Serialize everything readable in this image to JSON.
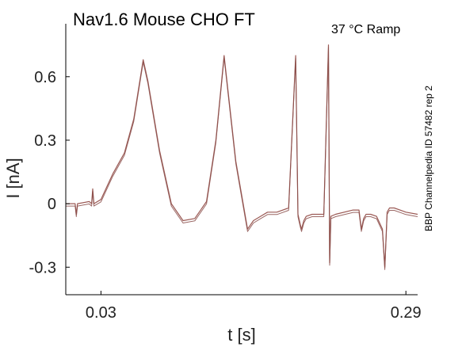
{
  "chart_data": {
    "type": "line",
    "title": "Nav1.6  Mouse  CHO FT",
    "condition": "37 °C  Ramp",
    "xlabel": "t [s]",
    "ylabel": "I [nA]",
    "side_note": "BBP Channelpedia ID 57482 rep 2",
    "xlim": [
      0.0,
      0.3
    ],
    "ylim": [
      -0.43,
      0.85
    ],
    "x_ticks": [
      0.03,
      0.29
    ],
    "x_tick_labels": [
      "0.03",
      "0.29"
    ],
    "y_ticks": [
      0.6,
      0.3,
      0,
      -0.3
    ],
    "y_tick_labels": [
      "0.6",
      "0.3",
      "0",
      "-0.3"
    ],
    "color": "#9b5a55",
    "series": [
      {
        "x": [
          0.0,
          0.008,
          0.009,
          0.01,
          0.02,
          0.022,
          0.023,
          0.024,
          0.03,
          0.04,
          0.05,
          0.058,
          0.066,
          0.07,
          0.08,
          0.09,
          0.1,
          0.11,
          0.12,
          0.128,
          0.135,
          0.145,
          0.155,
          0.16,
          0.166,
          0.172,
          0.18,
          0.19,
          0.196,
          0.198,
          0.2,
          0.201,
          0.203,
          0.205,
          0.21,
          0.22,
          0.224,
          0.225,
          0.226,
          0.23,
          0.245,
          0.25,
          0.252,
          0.254,
          0.256,
          0.26,
          0.265,
          0.27,
          0.272,
          0.274,
          0.276,
          0.28,
          0.29,
          0.3
        ],
        "y": [
          0.0,
          0.0,
          -0.05,
          0.0,
          0.01,
          0.0,
          0.07,
          0.0,
          0.02,
          0.14,
          0.24,
          0.4,
          0.68,
          0.58,
          0.25,
          0.0,
          -0.08,
          -0.07,
          0.01,
          0.3,
          0.7,
          0.2,
          -0.12,
          -0.08,
          -0.06,
          -0.04,
          -0.04,
          -0.02,
          0.7,
          -0.05,
          -0.1,
          -0.12,
          -0.08,
          -0.06,
          -0.05,
          -0.05,
          0.75,
          -0.28,
          -0.06,
          -0.05,
          -0.03,
          -0.03,
          -0.12,
          -0.07,
          -0.05,
          -0.05,
          -0.06,
          -0.12,
          -0.3,
          -0.04,
          -0.02,
          -0.02,
          -0.04,
          -0.05
        ]
      }
    ]
  }
}
